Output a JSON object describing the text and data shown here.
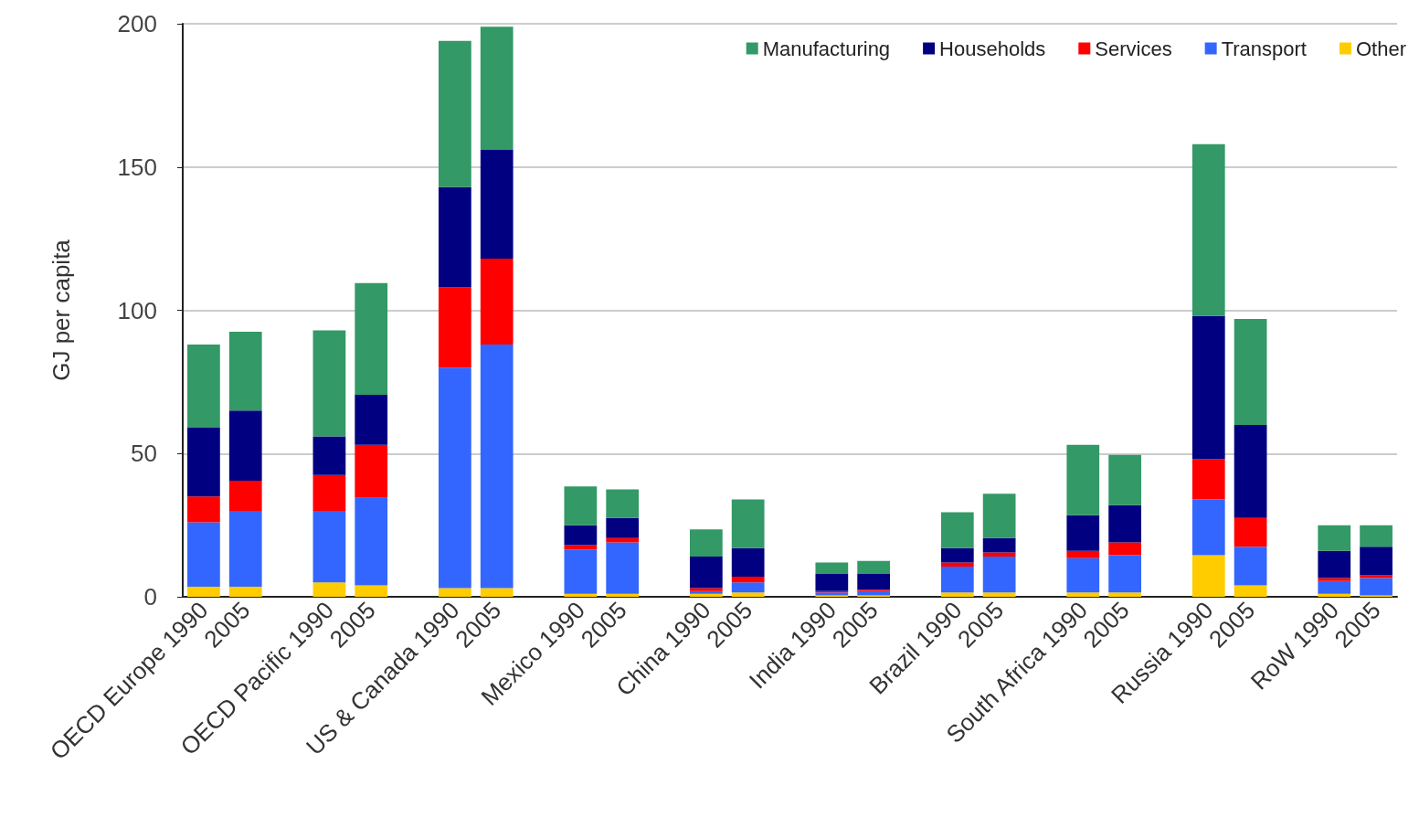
{
  "chart_data": {
    "type": "bar",
    "stacked": true,
    "ylabel": "GJ per capita",
    "categories": [
      "OECD Europe 1990",
      "2005",
      null,
      "OECD Pacific 1990",
      "2005",
      null,
      "US & Canada 1990",
      "2005",
      null,
      "Mexico 1990",
      "2005",
      null,
      "China 1990",
      "2005",
      null,
      "India 1990",
      "2005",
      null,
      "Brazil 1990",
      "2005",
      null,
      "South Africa 1990",
      "2005",
      null,
      "Russia 1990",
      "2005",
      null,
      "RoW 1990",
      "2005"
    ],
    "series": [
      {
        "name": "Other",
        "color": "#ffcc00",
        "values": [
          3.5,
          3.5,
          null,
          5,
          4,
          null,
          3,
          3,
          null,
          1,
          1,
          null,
          1,
          1.5,
          null,
          0.5,
          0.5,
          null,
          1.5,
          1.5,
          null,
          1.5,
          1.5,
          null,
          14.5,
          4,
          null,
          1,
          0.5
        ]
      },
      {
        "name": "Transport",
        "color": "#3366ff",
        "values": [
          22.5,
          26.5,
          null,
          25,
          30.5,
          null,
          77,
          85,
          null,
          15.5,
          18,
          null,
          1,
          3.5,
          null,
          1,
          1.5,
          null,
          9,
          12.5,
          null,
          12,
          13,
          null,
          19.5,
          13.5,
          null,
          4.5,
          6
        ]
      },
      {
        "name": "Services",
        "color": "#ff0000",
        "values": [
          9,
          10.5,
          null,
          12.5,
          18.5,
          null,
          28,
          30,
          null,
          1.5,
          1.5,
          null,
          1,
          2,
          null,
          0.5,
          0.5,
          null,
          1.5,
          1.5,
          null,
          2.5,
          4.5,
          null,
          14,
          10,
          null,
          1,
          1
        ]
      },
      {
        "name": "Households",
        "color": "#000080",
        "values": [
          24,
          24.5,
          null,
          13.5,
          17.5,
          null,
          35,
          38,
          null,
          7,
          7,
          null,
          11,
          10,
          null,
          6,
          5.5,
          null,
          5,
          5,
          null,
          12.5,
          13,
          null,
          50,
          32.5,
          null,
          9.5,
          10
        ]
      },
      {
        "name": "Manufacturing",
        "color": "#339966",
        "values": [
          29,
          27.5,
          null,
          37,
          39,
          null,
          51,
          43,
          null,
          13.5,
          10,
          null,
          9.5,
          17,
          null,
          4,
          4.5,
          null,
          12.5,
          15.5,
          null,
          24.5,
          17.5,
          null,
          60,
          37,
          null,
          9,
          7.5
        ]
      }
    ],
    "ylim": [
      0,
      200
    ],
    "yticks": [
      0,
      50,
      100,
      150,
      200
    ],
    "grid": "y",
    "legend": "top right"
  }
}
